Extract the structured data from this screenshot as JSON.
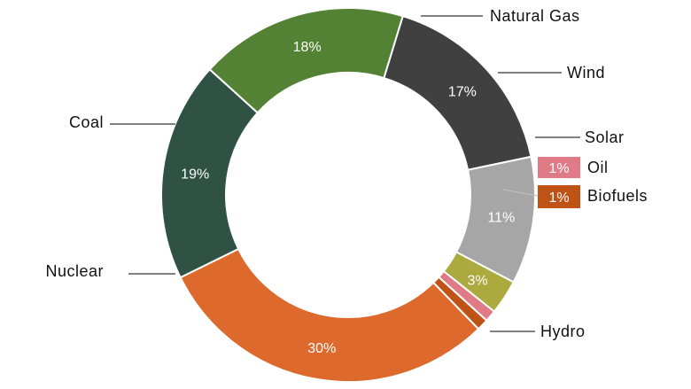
{
  "chart_data": {
    "type": "pie",
    "subtype": "donut",
    "title": "",
    "slices": [
      {
        "label": "Natural Gas",
        "value": 17,
        "value_label": "17%",
        "color": "#404040"
      },
      {
        "label": "Wind",
        "value": 11,
        "value_label": "11%",
        "color": "#a6a6a6"
      },
      {
        "label": "Solar",
        "value": 3,
        "value_label": "3%",
        "color": "#aca93f"
      },
      {
        "label": "Oil",
        "value": 1,
        "value_label": "1%",
        "color": "#e07a87"
      },
      {
        "label": "Biofuels",
        "value": 1,
        "value_label": "1%",
        "color": "#bf5215"
      },
      {
        "label": "Hydro",
        "value": 30,
        "value_label": "30%",
        "color": "#dd6a2c"
      },
      {
        "label": "Nuclear",
        "value": 19,
        "value_label": "19%",
        "color": "#2f5244"
      },
      {
        "label": "Coal",
        "value": 18,
        "value_label": "18%",
        "color": "#548235"
      }
    ],
    "legend": "none",
    "labels": "outside-with-leader-lines"
  }
}
